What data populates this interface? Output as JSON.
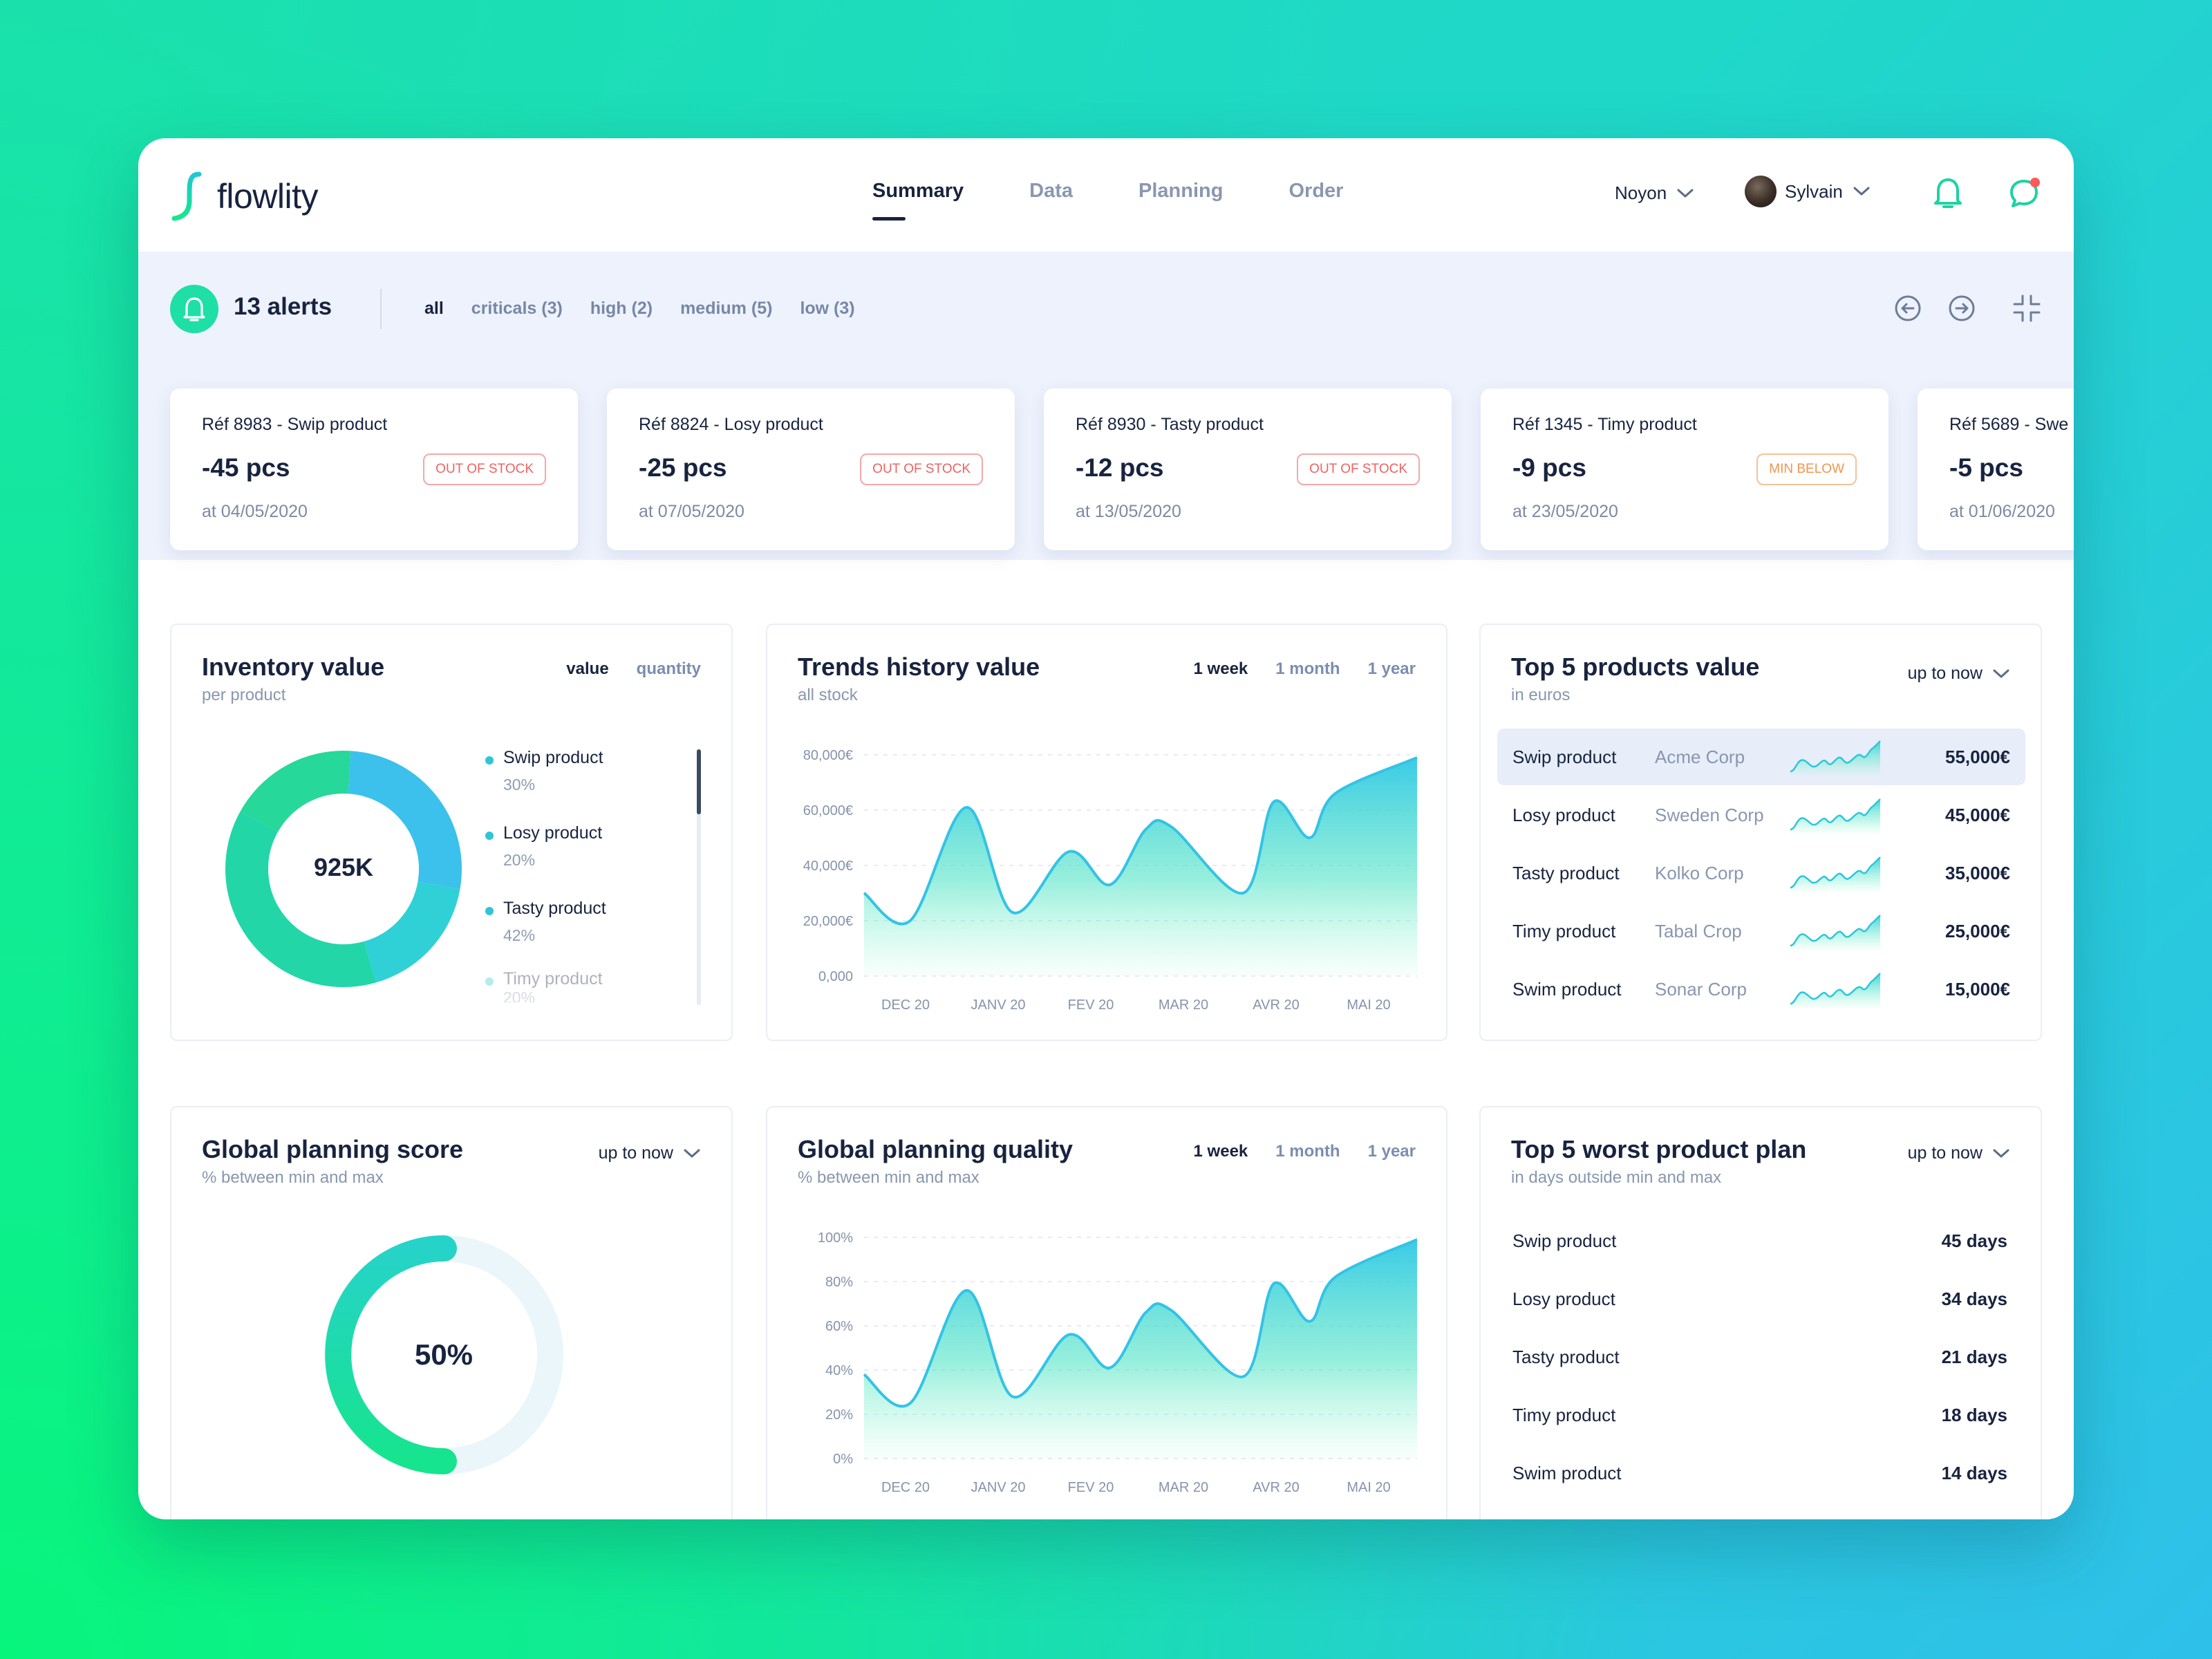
{
  "brand": {
    "name": "flowlity"
  },
  "nav": [
    {
      "label": "Summary",
      "active": true
    },
    {
      "label": "Data",
      "active": false
    },
    {
      "label": "Planning",
      "active": false
    },
    {
      "label": "Order",
      "active": false
    }
  ],
  "header": {
    "location": "Noyon",
    "user": "Sylvain"
  },
  "alerts": {
    "count_label": "13 alerts",
    "filters": [
      {
        "label": "all",
        "active": true
      },
      {
        "label": "criticals (3)",
        "active": false
      },
      {
        "label": "high (2)",
        "active": false
      },
      {
        "label": "medium (5)",
        "active": false
      },
      {
        "label": "low (3)",
        "active": false
      }
    ],
    "cards": [
      {
        "ref": "Réf 8983 - Swip product",
        "qty": "-45 pcs",
        "badge": "OUT OF STOCK",
        "badge_type": "out",
        "date": "at 04/05/2020"
      },
      {
        "ref": "Réf 8824 - Losy product",
        "qty": "-25 pcs",
        "badge": "OUT OF STOCK",
        "badge_type": "out",
        "date": "at 07/05/2020"
      },
      {
        "ref": "Réf 8930 - Tasty product",
        "qty": "-12 pcs",
        "badge": "OUT OF STOCK",
        "badge_type": "out",
        "date": "at 13/05/2020"
      },
      {
        "ref": "Réf 1345 - Timy product",
        "qty": "-9 pcs",
        "badge": "MIN BELOW",
        "badge_type": "min",
        "date": "at 23/05/2020"
      },
      {
        "ref": "Réf 5689 - Swe",
        "qty": "-5 pcs",
        "badge": "",
        "badge_type": "",
        "date": "at 01/06/2020"
      }
    ]
  },
  "inventory": {
    "title": "Inventory value",
    "subtitle": "per product",
    "tabs": [
      {
        "label": "value",
        "active": true
      },
      {
        "label": "quantity",
        "active": false
      }
    ],
    "center": "925K",
    "legend": [
      {
        "name": "Swip product",
        "pct": "30%"
      },
      {
        "name": "Losy product",
        "pct": "20%"
      },
      {
        "name": "Tasty product",
        "pct": "42%"
      },
      {
        "name": "Timy product",
        "pct": "20%"
      }
    ],
    "colors": [
      "#3cc0ec",
      "#2fd0d6",
      "#22d6a8",
      "#26d89a",
      "#0cf07a"
    ]
  },
  "trends": {
    "title": "Trends history value",
    "subtitle": "all stock",
    "tabs": [
      {
        "label": "1 week",
        "active": true
      },
      {
        "label": "1 month",
        "active": false
      },
      {
        "label": "1 year",
        "active": false
      }
    ]
  },
  "top5": {
    "title": "Top 5 products value",
    "subtitle": "in euros",
    "dropdown": "up to now",
    "rows": [
      {
        "name": "Swip product",
        "corp": "Acme Corp",
        "value": "55,000€"
      },
      {
        "name": "Losy product",
        "corp": "Sweden Corp",
        "value": "45,000€"
      },
      {
        "name": "Tasty product",
        "corp": "Kolko Corp",
        "value": "35,000€"
      },
      {
        "name": "Timy product",
        "corp": "Tabal Crop",
        "value": "25,000€"
      },
      {
        "name": "Swim product",
        "corp": "Sonar Corp",
        "value": "15,000€"
      }
    ]
  },
  "score": {
    "title": "Global planning score",
    "subtitle": "% between min and max",
    "dropdown": "up to now",
    "value_label": "50%",
    "value": 0.5
  },
  "quality": {
    "title": "Global planning quality",
    "subtitle": "% between min and max",
    "tabs": [
      {
        "label": "1 week",
        "active": true
      },
      {
        "label": "1 month",
        "active": false
      },
      {
        "label": "1 year",
        "active": false
      }
    ]
  },
  "worst": {
    "title": "Top 5 worst product plan",
    "subtitle": "in days outside min and max",
    "dropdown": "up to now",
    "rows": [
      {
        "name": "Swip product",
        "value": "45 days"
      },
      {
        "name": "Losy product",
        "value": "34 days"
      },
      {
        "name": "Tasty product",
        "value": "21 days"
      },
      {
        "name": "Timy product",
        "value": "18 days"
      },
      {
        "name": "Swim product",
        "value": "14 days"
      }
    ]
  },
  "chart_data": [
    {
      "type": "pie",
      "title": "Inventory value",
      "categories": [
        "Swip product",
        "Losy product",
        "Tasty product",
        "Timy product"
      ],
      "values": [
        30,
        20,
        42,
        20
      ]
    },
    {
      "type": "area",
      "title": "Trends history value",
      "xlabel": "",
      "ylabel": "",
      "ylim": [
        0,
        80000
      ],
      "yticks": [
        "80,000€",
        "60,000€",
        "40,000€",
        "20,000€",
        "0,000"
      ],
      "categories": [
        "DEC 20",
        "JANV 20",
        "FEV 20",
        "MAR 20",
        "AVR 20",
        "MAI 20"
      ],
      "x": [
        0,
        0.45,
        1,
        1.45,
        2,
        2.4,
        2.75,
        3,
        3.7,
        4,
        4.35,
        4.6,
        5.4
      ],
      "series": [
        {
          "values": [
            30000,
            20000,
            61000,
            23000,
            45000,
            33000,
            53000,
            54000,
            30000,
            63000,
            50000,
            66000,
            79000
          ]
        }
      ]
    },
    {
      "type": "area",
      "title": "Global planning quality",
      "xlabel": "",
      "ylabel": "",
      "ylim": [
        0,
        100
      ],
      "yticks": [
        "100%",
        "80%",
        "60%",
        "40%",
        "20%",
        "0%"
      ],
      "categories": [
        "DEC 20",
        "JANV 20",
        "FEV 20",
        "MAR 20",
        "AVR 20",
        "MAI 20"
      ],
      "x": [
        0,
        0.45,
        1,
        1.45,
        2,
        2.4,
        2.75,
        3,
        3.7,
        4,
        4.35,
        4.6,
        5.4
      ],
      "series": [
        {
          "values": [
            38,
            25,
            76,
            28,
            56,
            41,
            66,
            67,
            37,
            79,
            62,
            82,
            99
          ]
        }
      ]
    }
  ]
}
